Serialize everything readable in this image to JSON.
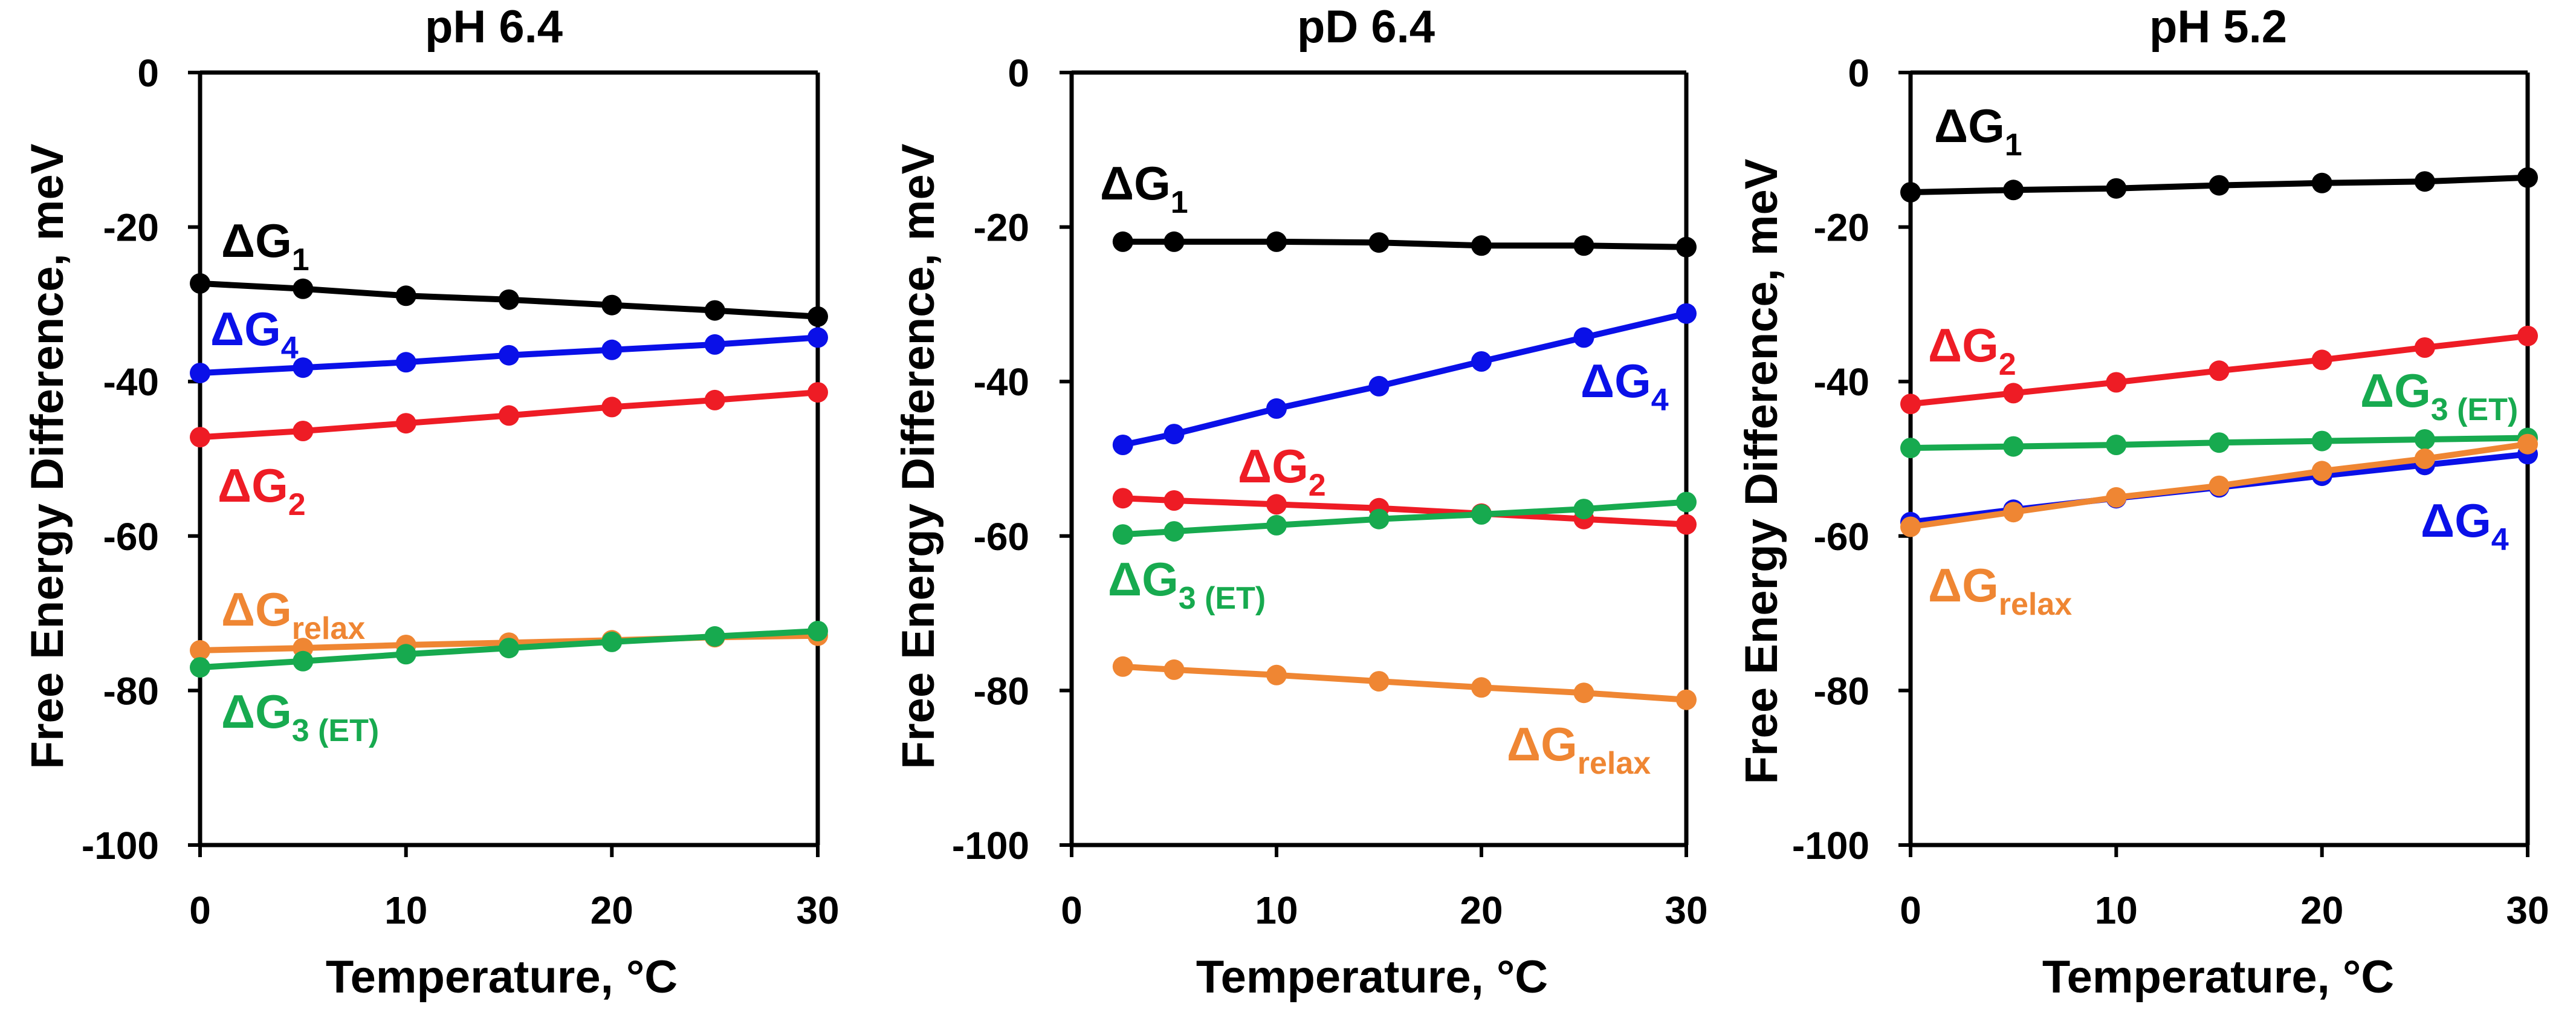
{
  "chart_data": [
    {
      "type": "line",
      "title": "pH 6.4",
      "xlabel": "Temperature, °C",
      "ylabel": "Free Energy Difference, meV",
      "xlim": [
        0,
        30
      ],
      "ylim": [
        -100,
        0
      ],
      "xticks": [
        0,
        10,
        20,
        30
      ],
      "yticks": [
        0,
        -20,
        -40,
        -60,
        -80,
        -100
      ],
      "grid": false,
      "series": [
        {
          "name": "ΔG1",
          "color": "#000000",
          "x": [
            0,
            5,
            10,
            15,
            20,
            25,
            30
          ],
          "values": [
            -27.3,
            -28.0,
            -28.9,
            -29.4,
            -30.1,
            -30.8,
            -31.6
          ]
        },
        {
          "name": "ΔG4",
          "color": "#0a10e8",
          "x": [
            0,
            5,
            10,
            15,
            20,
            25,
            30
          ],
          "values": [
            -38.9,
            -38.2,
            -37.5,
            -36.6,
            -35.9,
            -35.2,
            -34.3
          ]
        },
        {
          "name": "ΔG2",
          "color": "#ee1c25",
          "x": [
            0,
            5,
            10,
            15,
            20,
            25,
            30
          ],
          "values": [
            -47.2,
            -46.4,
            -45.4,
            -44.4,
            -43.3,
            -42.4,
            -41.4
          ]
        },
        {
          "name": "ΔGrelax",
          "color": "#ef8633",
          "x": [
            0,
            5,
            10,
            15,
            20,
            25,
            30
          ],
          "values": [
            -74.8,
            -74.5,
            -74.1,
            -73.8,
            -73.5,
            -73.1,
            -72.9
          ]
        },
        {
          "name": "ΔG3 (ET)",
          "color": "#17aa4f",
          "x": [
            0,
            5,
            10,
            15,
            20,
            25,
            30
          ],
          "values": [
            -77.0,
            -76.2,
            -75.3,
            -74.5,
            -73.7,
            -73.0,
            -72.3
          ]
        }
      ],
      "annotations": [
        {
          "series": "ΔG1",
          "main": "ΔG",
          "sub": "1",
          "color": "#000000"
        },
        {
          "series": "ΔG4",
          "main": "ΔG",
          "sub": "4",
          "color": "#0a10e8"
        },
        {
          "series": "ΔG2",
          "main": "ΔG",
          "sub": "2",
          "color": "#ee1c25"
        },
        {
          "series": "ΔGrelax",
          "main": "ΔG",
          "sub": "relax",
          "color": "#ef8633"
        },
        {
          "series": "ΔG3 (ET)",
          "main": "ΔG",
          "sub": "3 (ET)",
          "color": "#17aa4f"
        }
      ]
    },
    {
      "type": "line",
      "title": "pD 6.4",
      "xlabel": "Temperature, °C",
      "ylabel": "Free Energy Difference, meV",
      "xlim": [
        0,
        30
      ],
      "ylim": [
        -100,
        0
      ],
      "xticks": [
        0,
        10,
        20,
        30
      ],
      "yticks": [
        0,
        -20,
        -40,
        -60,
        -80,
        -100
      ],
      "grid": false,
      "series": [
        {
          "name": "ΔG1",
          "color": "#000000",
          "x": [
            2.5,
            5,
            10,
            15,
            20,
            25,
            30
          ],
          "values": [
            -21.9,
            -21.9,
            -21.9,
            -22.0,
            -22.4,
            -22.4,
            -22.6
          ]
        },
        {
          "name": "ΔG4",
          "color": "#0a10e8",
          "x": [
            2.5,
            5,
            10,
            15,
            20,
            25,
            30
          ],
          "values": [
            -48.2,
            -46.8,
            -43.5,
            -40.6,
            -37.4,
            -34.3,
            -31.2
          ]
        },
        {
          "name": "ΔG2",
          "color": "#ee1c25",
          "x": [
            2.5,
            5,
            10,
            15,
            20,
            25,
            30
          ],
          "values": [
            -55.1,
            -55.4,
            -55.9,
            -56.4,
            -57.1,
            -57.8,
            -58.5
          ]
        },
        {
          "name": "ΔG3 (ET)",
          "color": "#17aa4f",
          "x": [
            2.5,
            5,
            10,
            15,
            20,
            25,
            30
          ],
          "values": [
            -59.8,
            -59.4,
            -58.6,
            -57.8,
            -57.2,
            -56.5,
            -55.6
          ]
        },
        {
          "name": "ΔGrelax",
          "color": "#ef8633",
          "x": [
            2.5,
            5,
            10,
            15,
            20,
            25,
            30
          ],
          "values": [
            -76.9,
            -77.3,
            -78.0,
            -78.8,
            -79.6,
            -80.3,
            -81.2
          ]
        }
      ],
      "annotations": [
        {
          "series": "ΔG1",
          "main": "ΔG",
          "sub": "1",
          "color": "#000000"
        },
        {
          "series": "ΔG4",
          "main": "ΔG",
          "sub": "4",
          "color": "#0a10e8"
        },
        {
          "series": "ΔG2",
          "main": "ΔG",
          "sub": "2",
          "color": "#ee1c25"
        },
        {
          "series": "ΔG3 (ET)",
          "main": "ΔG",
          "sub": "3 (ET)",
          "color": "#17aa4f"
        },
        {
          "series": "ΔGrelax",
          "main": "ΔG",
          "sub": "relax",
          "color": "#ef8633"
        }
      ]
    },
    {
      "type": "line",
      "title": "pH 5.2",
      "xlabel": "Temperature, °C",
      "ylabel": "Free Energy Difference, meV",
      "xlim": [
        0,
        30
      ],
      "ylim": [
        -100,
        0
      ],
      "xticks": [
        0,
        10,
        20,
        30
      ],
      "yticks": [
        0,
        -20,
        -40,
        -60,
        -80,
        -100
      ],
      "grid": false,
      "series": [
        {
          "name": "ΔG1",
          "color": "#000000",
          "x": [
            0,
            5,
            10,
            15,
            20,
            25,
            30
          ],
          "values": [
            -15.5,
            -15.2,
            -15.0,
            -14.6,
            -14.3,
            -14.1,
            -13.6
          ]
        },
        {
          "name": "ΔG2",
          "color": "#ee1c25",
          "x": [
            0,
            5,
            10,
            15,
            20,
            25,
            30
          ],
          "values": [
            -42.9,
            -41.5,
            -40.1,
            -38.6,
            -37.2,
            -35.6,
            -34.1
          ]
        },
        {
          "name": "ΔG3 (ET)",
          "color": "#17aa4f",
          "x": [
            0,
            5,
            10,
            15,
            20,
            25,
            30
          ],
          "values": [
            -48.6,
            -48.4,
            -48.2,
            -47.9,
            -47.7,
            -47.5,
            -47.3
          ]
        },
        {
          "name": "ΔG4",
          "color": "#0a10e8",
          "x": [
            0,
            5,
            10,
            15,
            20,
            25,
            30
          ],
          "values": [
            -58.2,
            -56.6,
            -55.1,
            -53.7,
            -52.2,
            -50.8,
            -49.4
          ]
        },
        {
          "name": "ΔGrelax",
          "color": "#ef8633",
          "x": [
            0,
            5,
            10,
            15,
            20,
            25,
            30
          ],
          "values": [
            -58.8,
            -56.9,
            -55.0,
            -53.5,
            -51.6,
            -50.0,
            -48.1
          ]
        }
      ],
      "annotations": [
        {
          "series": "ΔG1",
          "main": "ΔG",
          "sub": "1",
          "color": "#000000"
        },
        {
          "series": "ΔG2",
          "main": "ΔG",
          "sub": "2",
          "color": "#ee1c25"
        },
        {
          "series": "ΔG3 (ET)",
          "main": "ΔG",
          "sub": "3 (ET)",
          "color": "#17aa4f"
        },
        {
          "series": "ΔG4",
          "main": "ΔG",
          "sub": "4",
          "color": "#0a10e8"
        },
        {
          "series": "ΔGrelax",
          "main": "ΔG",
          "sub": "relax",
          "color": "#ef8633"
        }
      ]
    }
  ]
}
